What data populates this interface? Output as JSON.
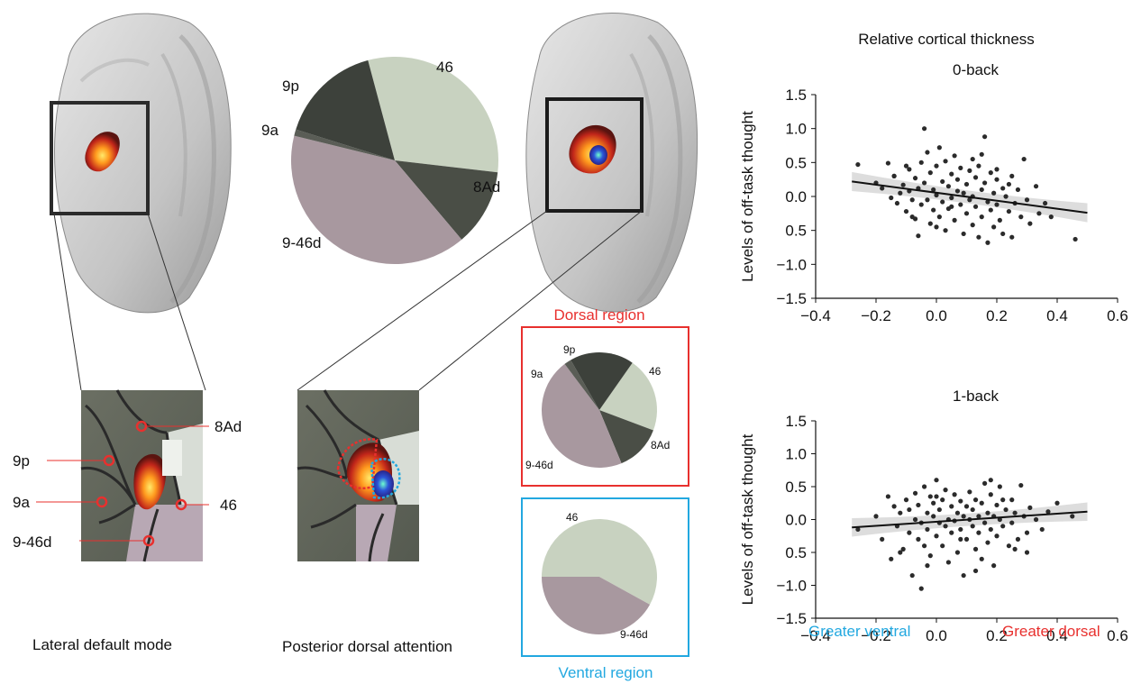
{
  "panels": {
    "left": {
      "caption": "Lateral default mode",
      "zoom_labels": [
        "8Ad",
        "9p",
        "9a",
        "46",
        "9-46d"
      ]
    },
    "middle": {
      "caption": "Posterior dorsal attention",
      "pie_labels": [
        "46",
        "9p",
        "9a",
        "8Ad",
        "9-46d"
      ]
    },
    "regions": {
      "dorsal_title": "Dorsal region",
      "ventral_title": "Ventral region",
      "dorsal_color": "#e8302e",
      "ventral_color": "#22a8e0",
      "dorsal_pie_labels": [
        "9p",
        "9a",
        "46",
        "8Ad",
        "9-46d"
      ],
      "ventral_pie_labels": [
        "46",
        "9-46d"
      ]
    }
  },
  "plots": {
    "title": "Relative cortical thickness",
    "ylabel": "Levels of off-task thought",
    "x_note_left": "Greater ventral",
    "x_note_right": "Greater dorsal"
  },
  "chart_data": [
    {
      "type": "pie",
      "labels": [
        "46",
        "8Ad",
        "9-46d",
        "9a",
        "9p"
      ],
      "values": [
        0.31,
        0.12,
        0.4,
        0.01,
        0.16
      ],
      "colors": [
        "#c8d2c0",
        "#4a4e46",
        "#a8989f",
        "#5a5d56",
        "#3d413b"
      ]
    },
    {
      "type": "pie",
      "title": "Dorsal region",
      "labels": [
        "46",
        "8Ad",
        "9-46d",
        "9a",
        "9p"
      ],
      "values": [
        0.21,
        0.13,
        0.46,
        0.02,
        0.18
      ],
      "colors": [
        "#c8d2c0",
        "#4a4e46",
        "#a8989f",
        "#5a5d56",
        "#3d413b"
      ]
    },
    {
      "type": "pie",
      "title": "Ventral region",
      "labels": [
        "46",
        "9-46d"
      ],
      "values": [
        0.58,
        0.42
      ],
      "colors": [
        "#c8d2c0",
        "#a8989f"
      ]
    },
    {
      "type": "scatter",
      "title": "0-back",
      "ylabel": "Levels of off-task thought",
      "xlim": [
        -0.4,
        0.6
      ],
      "ylim": [
        -1.5,
        1.5
      ],
      "xticks": [
        "−0.4",
        "−0.2",
        "0.0",
        "0.2",
        "0.4",
        "0.6"
      ],
      "yticks": [
        "1.5",
        "1.0",
        "0.5",
        "0.0",
        "0.5",
        "−1.0",
        "−1.5"
      ],
      "fit": {
        "x": [
          -0.28,
          0.5
        ],
        "y": [
          0.22,
          -0.24
        ]
      },
      "points": [
        [
          -0.26,
          0.47
        ],
        [
          -0.2,
          0.2
        ],
        [
          -0.18,
          0.12
        ],
        [
          -0.16,
          0.49
        ],
        [
          -0.15,
          -0.02
        ],
        [
          -0.14,
          0.3
        ],
        [
          -0.13,
          -0.1
        ],
        [
          -0.12,
          0.05
        ],
        [
          -0.11,
          0.17
        ],
        [
          -0.1,
          -0.22
        ],
        [
          -0.09,
          0.4
        ],
        [
          -0.09,
          0.08
        ],
        [
          -0.08,
          -0.05
        ],
        [
          -0.07,
          0.27
        ],
        [
          -0.07,
          -0.33
        ],
        [
          -0.06,
          0.12
        ],
        [
          -0.06,
          -0.58
        ],
        [
          -0.05,
          0.5
        ],
        [
          -0.05,
          -0.12
        ],
        [
          -0.04,
          1.0
        ],
        [
          -0.04,
          0.2
        ],
        [
          -0.03,
          0.65
        ],
        [
          -0.03,
          -0.05
        ],
        [
          -0.02,
          0.35
        ],
        [
          -0.02,
          -0.4
        ],
        [
          -0.01,
          0.1
        ],
        [
          -0.01,
          -0.2
        ],
        [
          0.0,
          0.45
        ],
        [
          0.0,
          0.02
        ],
        [
          0.01,
          0.72
        ],
        [
          0.01,
          -0.3
        ],
        [
          0.02,
          0.22
        ],
        [
          0.02,
          -0.08
        ],
        [
          0.03,
          0.52
        ],
        [
          0.03,
          -0.5
        ],
        [
          0.04,
          0.15
        ],
        [
          0.04,
          -0.18
        ],
        [
          0.05,
          0.33
        ],
        [
          0.05,
          -0.02
        ],
        [
          0.06,
          0.6
        ],
        [
          0.06,
          -0.35
        ],
        [
          0.07,
          0.08
        ],
        [
          0.07,
          0.25
        ],
        [
          0.08,
          -0.12
        ],
        [
          0.08,
          0.42
        ],
        [
          0.09,
          -0.55
        ],
        [
          0.09,
          0.05
        ],
        [
          0.1,
          0.18
        ],
        [
          0.1,
          -0.25
        ],
        [
          0.11,
          0.38
        ],
        [
          0.11,
          -0.05
        ],
        [
          0.12,
          0.0
        ],
        [
          0.12,
          -0.42
        ],
        [
          0.13,
          0.28
        ],
        [
          0.13,
          -0.15
        ],
        [
          0.14,
          0.45
        ],
        [
          0.14,
          -0.6
        ],
        [
          0.15,
          0.1
        ],
        [
          0.15,
          -0.3
        ],
        [
          0.16,
          0.88
        ],
        [
          0.16,
          0.2
        ],
        [
          0.17,
          -0.08
        ],
        [
          0.17,
          -0.68
        ],
        [
          0.18,
          0.35
        ],
        [
          0.18,
          -0.2
        ],
        [
          0.19,
          0.05
        ],
        [
          0.19,
          -0.45
        ],
        [
          0.2,
          0.25
        ],
        [
          0.2,
          -0.12
        ],
        [
          0.21,
          -0.35
        ],
        [
          0.22,
          0.12
        ],
        [
          0.22,
          -0.55
        ],
        [
          0.23,
          0.0
        ],
        [
          0.24,
          -0.22
        ],
        [
          0.25,
          0.3
        ],
        [
          0.25,
          -0.6
        ],
        [
          0.26,
          -0.1
        ],
        [
          0.27,
          0.1
        ],
        [
          0.28,
          -0.3
        ],
        [
          0.29,
          0.55
        ],
        [
          0.3,
          -0.05
        ],
        [
          0.31,
          -0.4
        ],
        [
          0.33,
          0.15
        ],
        [
          0.34,
          -0.25
        ],
        [
          0.36,
          -0.1
        ],
        [
          0.38,
          -0.3
        ],
        [
          0.46,
          -0.63
        ],
        [
          -0.14,
          0.3
        ],
        [
          -0.1,
          0.45
        ],
        [
          0.0,
          -0.45
        ],
        [
          0.05,
          -0.15
        ],
        [
          0.12,
          0.55
        ],
        [
          0.2,
          0.4
        ],
        [
          -0.08,
          -0.3
        ],
        [
          0.15,
          0.62
        ],
        [
          0.24,
          0.18
        ]
      ]
    },
    {
      "type": "scatter",
      "title": "1-back",
      "ylabel": "Levels of off-task thought",
      "xlim": [
        -0.4,
        0.6
      ],
      "ylim": [
        -1.5,
        1.5
      ],
      "xticks": [
        "−0.4",
        "−0.2",
        "0.0",
        "0.2",
        "0.4",
        "0.6"
      ],
      "yticks": [
        "1.5",
        "1.0",
        "0.5",
        "0.0",
        "0.5",
        "−1.0",
        "−1.5"
      ],
      "fit": {
        "x": [
          -0.28,
          0.5
        ],
        "y": [
          -0.12,
          0.12
        ]
      },
      "points": [
        [
          -0.26,
          -0.15
        ],
        [
          -0.2,
          0.05
        ],
        [
          -0.18,
          -0.3
        ],
        [
          -0.16,
          0.35
        ],
        [
          -0.15,
          -0.6
        ],
        [
          -0.14,
          0.2
        ],
        [
          -0.13,
          -0.1
        ],
        [
          -0.12,
          0.1
        ],
        [
          -0.11,
          -0.45
        ],
        [
          -0.1,
          0.3
        ],
        [
          -0.09,
          -0.2
        ],
        [
          -0.09,
          0.15
        ],
        [
          -0.08,
          -0.85
        ],
        [
          -0.07,
          0.0
        ],
        [
          -0.07,
          0.4
        ],
        [
          -0.06,
          -0.3
        ],
        [
          -0.06,
          0.22
        ],
        [
          -0.05,
          -1.05
        ],
        [
          -0.05,
          -0.05
        ],
        [
          -0.04,
          0.5
        ],
        [
          -0.04,
          -0.4
        ],
        [
          -0.03,
          0.1
        ],
        [
          -0.03,
          -0.15
        ],
        [
          -0.02,
          0.35
        ],
        [
          -0.02,
          -0.55
        ],
        [
          -0.01,
          0.05
        ],
        [
          -0.01,
          0.25
        ],
        [
          0.0,
          -0.25
        ],
        [
          0.0,
          0.6
        ],
        [
          0.01,
          -0.05
        ],
        [
          0.01,
          0.15
        ],
        [
          0.02,
          -0.4
        ],
        [
          0.02,
          0.3
        ],
        [
          0.03,
          -0.1
        ],
        [
          0.03,
          0.45
        ],
        [
          0.04,
          0.0
        ],
        [
          0.04,
          -0.65
        ],
        [
          0.05,
          0.2
        ],
        [
          0.05,
          -0.2
        ],
        [
          0.06,
          0.38
        ],
        [
          0.06,
          -0.02
        ],
        [
          0.07,
          0.1
        ],
        [
          0.07,
          -0.5
        ],
        [
          0.08,
          0.28
        ],
        [
          0.08,
          -0.15
        ],
        [
          0.09,
          0.05
        ],
        [
          0.09,
          -0.85
        ],
        [
          0.1,
          0.2
        ],
        [
          0.1,
          -0.3
        ],
        [
          0.11,
          0.0
        ],
        [
          0.11,
          0.42
        ],
        [
          0.12,
          -0.1
        ],
        [
          0.12,
          0.15
        ],
        [
          0.13,
          -0.45
        ],
        [
          0.13,
          0.3
        ],
        [
          0.14,
          -0.2
        ],
        [
          0.14,
          0.05
        ],
        [
          0.15,
          -0.6
        ],
        [
          0.15,
          0.25
        ],
        [
          0.16,
          0.55
        ],
        [
          0.16,
          -0.05
        ],
        [
          0.17,
          0.1
        ],
        [
          0.17,
          -0.35
        ],
        [
          0.18,
          0.38
        ],
        [
          0.18,
          -0.15
        ],
        [
          0.19,
          0.05
        ],
        [
          0.19,
          -0.7
        ],
        [
          0.2,
          0.22
        ],
        [
          0.2,
          -0.25
        ],
        [
          0.21,
          0.0
        ],
        [
          0.21,
          0.5
        ],
        [
          0.22,
          -0.1
        ],
        [
          0.23,
          0.15
        ],
        [
          0.24,
          -0.4
        ],
        [
          0.25,
          0.3
        ],
        [
          0.25,
          -0.05
        ],
        [
          0.26,
          0.1
        ],
        [
          0.27,
          -0.3
        ],
        [
          0.28,
          0.52
        ],
        [
          0.29,
          0.05
        ],
        [
          0.3,
          -0.2
        ],
        [
          0.31,
          0.18
        ],
        [
          0.33,
          0.0
        ],
        [
          0.35,
          -0.15
        ],
        [
          0.37,
          0.12
        ],
        [
          0.4,
          0.25
        ],
        [
          0.45,
          0.05
        ],
        [
          0.3,
          -0.5
        ],
        [
          -0.12,
          -0.5
        ],
        [
          0.0,
          0.35
        ],
        [
          0.08,
          -0.3
        ],
        [
          0.18,
          0.6
        ],
        [
          0.22,
          0.3
        ],
        [
          -0.03,
          -0.7
        ],
        [
          0.13,
          -0.78
        ],
        [
          0.26,
          -0.45
        ]
      ]
    }
  ]
}
